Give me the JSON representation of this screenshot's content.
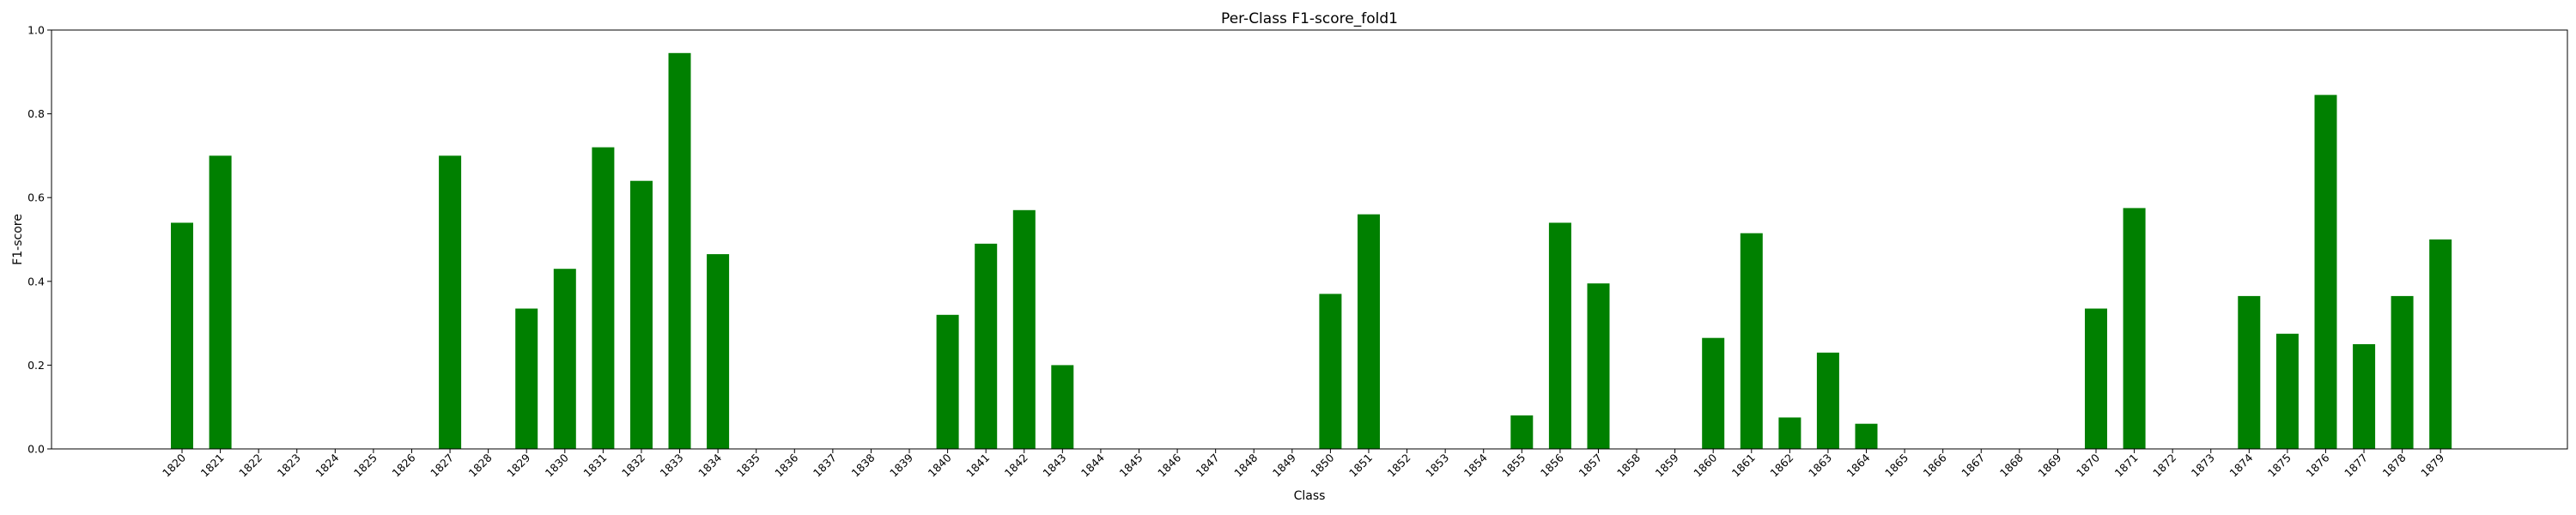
{
  "chart_data": {
    "type": "bar",
    "title": "Per-Class F1-score_fold1",
    "xlabel": "Class",
    "ylabel": "F1-score",
    "ylim": [
      0,
      1.0
    ],
    "yticks": [
      "0.0",
      "0.2",
      "0.4",
      "0.6",
      "0.8",
      "1.0"
    ],
    "grid": false,
    "bar_color": "#008000",
    "categories": [
      "1820",
      "1821",
      "1822",
      "1823",
      "1824",
      "1825",
      "1826",
      "1827",
      "1828",
      "1829",
      "1830",
      "1831",
      "1832",
      "1833",
      "1834",
      "1835",
      "1836",
      "1837",
      "1838",
      "1839",
      "1840",
      "1841",
      "1842",
      "1843",
      "1844",
      "1845",
      "1846",
      "1847",
      "1848",
      "1849",
      "1850",
      "1851",
      "1852",
      "1853",
      "1854",
      "1855",
      "1856",
      "1857",
      "1858",
      "1859",
      "1860",
      "1861",
      "1862",
      "1863",
      "1864",
      "1865",
      "1866",
      "1867",
      "1868",
      "1869",
      "1870",
      "1871",
      "1872",
      "1873",
      "1874",
      "1875",
      "1876",
      "1877",
      "1878",
      "1879"
    ],
    "values": [
      0.54,
      0.7,
      0,
      0,
      0,
      0,
      0,
      0.7,
      0,
      0.335,
      0.43,
      0.72,
      0.64,
      0.945,
      0.465,
      0,
      0,
      0,
      0,
      0,
      0.32,
      0.49,
      0.57,
      0.2,
      0,
      0,
      0,
      0,
      0,
      0,
      0.37,
      0.56,
      0,
      0,
      0,
      0.08,
      0.54,
      0.395,
      0,
      0,
      0.265,
      0.515,
      0.075,
      0.23,
      0.06,
      0,
      0,
      0,
      0,
      0,
      0.335,
      0.575,
      0,
      0,
      0.365,
      0.275,
      0.845,
      0.25,
      0.365,
      0.5
    ]
  }
}
